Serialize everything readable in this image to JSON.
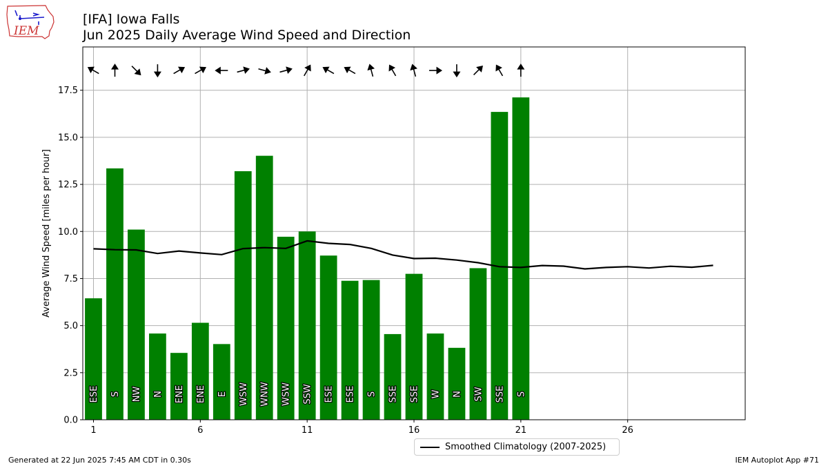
{
  "header": {
    "logo_text": "IEM",
    "title_line1": "[IFA] Iowa Falls",
    "title_line2": "Jun 2025 Daily Average Wind Speed and Direction"
  },
  "footer": {
    "generated": "Generated at 22 Jun 2025 7:45 AM CDT in 0.30s",
    "app": "IEM Autoplot App #71"
  },
  "colors": {
    "bar": "#008000",
    "climo_line": "#000000",
    "grid": "#b0b0b0",
    "logo_red": "#cc3333",
    "logo_blue": "#1a1acc"
  },
  "chart_data": {
    "type": "bar",
    "ylabel": "Average Wind Speed [miles per hour]",
    "xlim": [
      0.5,
      31.5
    ],
    "ylim": [
      0,
      19.8
    ],
    "xticks": [
      1,
      6,
      11,
      16,
      21,
      26
    ],
    "yticks": [
      "0.0",
      "2.5",
      "5.0",
      "7.5",
      "10.0",
      "12.5",
      "15.0",
      "17.5"
    ],
    "grid": true,
    "legend_position": "bottom-center",
    "days": [
      1,
      2,
      3,
      4,
      5,
      6,
      7,
      8,
      9,
      10,
      11,
      12,
      13,
      14,
      15,
      16,
      17,
      18,
      19,
      20,
      21
    ],
    "speed_mph": [
      6.45,
      13.35,
      10.1,
      4.58,
      3.55,
      5.15,
      4.02,
      13.2,
      14.02,
      9.72,
      10.0,
      8.72,
      7.38,
      7.42,
      4.55,
      7.75,
      4.58,
      3.82,
      8.05,
      16.35,
      17.12
    ],
    "direction_labels": [
      "ESE",
      "S",
      "NW",
      "N",
      "ENE",
      "ENE",
      "E",
      "WSW",
      "WNW",
      "WSW",
      "SSW",
      "ESE",
      "ESE",
      "S",
      "SSE",
      "SSE",
      "W",
      "N",
      "SW",
      "SSE",
      "S"
    ],
    "arrow_heading_deg": [
      300,
      0,
      135,
      180,
      60,
      60,
      270,
      75,
      105,
      75,
      30,
      300,
      300,
      345,
      330,
      345,
      90,
      180,
      45,
      330,
      0
    ],
    "series": [
      {
        "name": "Smoothed Climatology (2007-2025)",
        "type": "line",
        "x": [
          1,
          2,
          3,
          4,
          5,
          6,
          7,
          8,
          9,
          10,
          11,
          12,
          13,
          14,
          15,
          16,
          17,
          18,
          19,
          20,
          21,
          22,
          23,
          24,
          25,
          26,
          27,
          28,
          29,
          30
        ],
        "values": [
          9.08,
          9.03,
          9.02,
          8.83,
          8.96,
          8.86,
          8.77,
          9.09,
          9.14,
          9.1,
          9.5,
          9.37,
          9.31,
          9.1,
          8.75,
          8.56,
          8.58,
          8.48,
          8.34,
          8.13,
          8.09,
          8.19,
          8.16,
          8.01,
          8.09,
          8.13,
          8.06,
          8.15,
          8.1,
          8.2
        ]
      }
    ]
  }
}
